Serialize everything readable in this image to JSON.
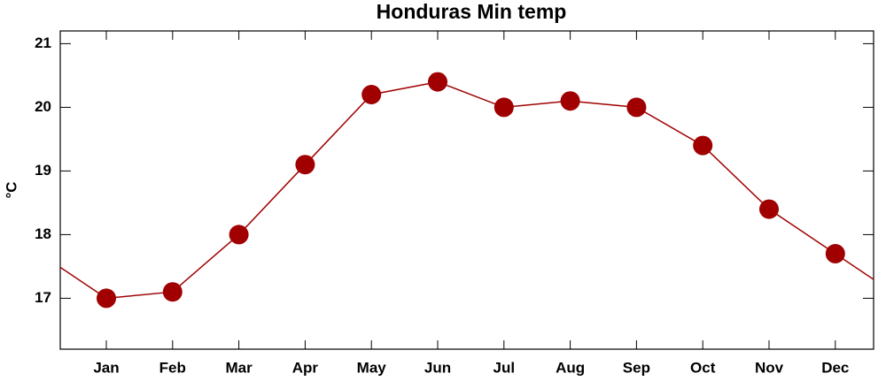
{
  "chart_data": {
    "type": "line",
    "title": "Honduras Min temp",
    "ylabel": "°C",
    "categories": [
      "Jan",
      "Feb",
      "Mar",
      "Apr",
      "May",
      "Jun",
      "Jul",
      "Aug",
      "Sep",
      "Oct",
      "Nov",
      "Dec"
    ],
    "series": [
      {
        "name": "Min temp",
        "color": "#a00000",
        "values": [
          17.0,
          17.1,
          18.0,
          19.1,
          20.2,
          20.4,
          20.0,
          20.1,
          20.0,
          19.4,
          18.4,
          17.7
        ]
      }
    ],
    "ylim": [
      16.2,
      21.2
    ],
    "yticks": [
      17,
      18,
      19,
      20,
      21
    ],
    "grid": false
  }
}
